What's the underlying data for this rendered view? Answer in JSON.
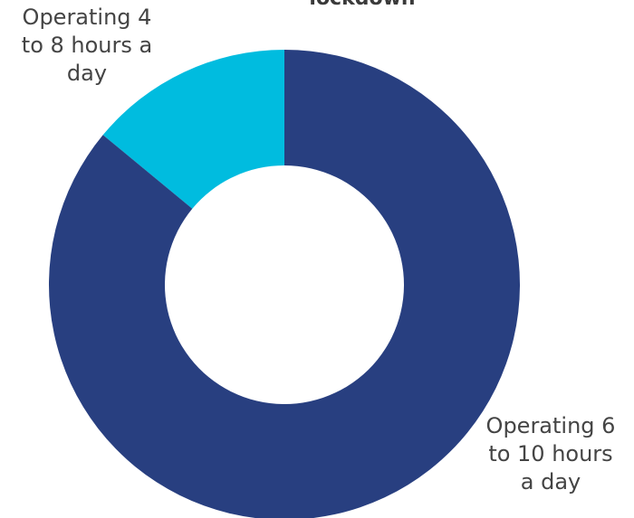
{
  "chart_data": {
    "type": "pie",
    "donut": true,
    "title_fragment": "lockdown",
    "categories": [
      "Operating 4\nto 8 hours a\nday",
      "Operating 6\nto 10 hours\na day"
    ],
    "values": [
      14,
      86
    ],
    "colors": [
      "#00bcdf",
      "#283f80"
    ],
    "legend": "none"
  }
}
